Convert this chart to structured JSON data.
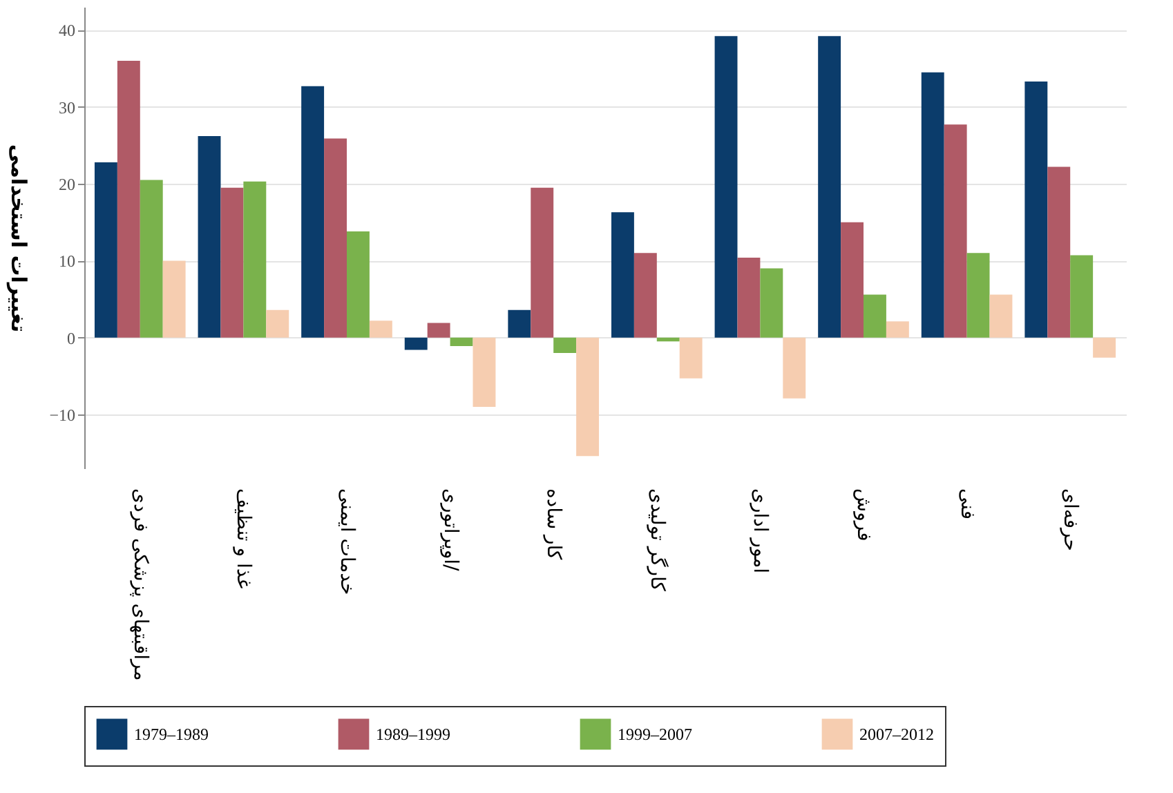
{
  "chart_data": {
    "type": "bar",
    "ylabel": "تغییرات استخدامی",
    "categories": [
      "مراقبتهای پزشکی فردی",
      "غذا و تنظیف",
      "خدمات ایمنی",
      "اوپراتوری/",
      "کار ساده",
      "کارگر تولیدی",
      "امور اداری",
      "فروش",
      "فنی",
      "حرفه‌ای"
    ],
    "series": [
      {
        "name": "1979–1989",
        "color": "#0b3c6b",
        "values": [
          22.8,
          26.2,
          32.7,
          -1.6,
          3.6,
          16.3,
          39.2,
          39.2,
          34.5,
          33.3
        ]
      },
      {
        "name": "1989–1999",
        "color": "#b05a66",
        "values": [
          36,
          19.5,
          25.9,
          1.9,
          19.5,
          11,
          10.4,
          15,
          27.7,
          22.2
        ]
      },
      {
        "name": "1999–2007",
        "color": "#7ab24c",
        "values": [
          20.5,
          20.3,
          13.8,
          -1.1,
          -2,
          -0.5,
          9,
          5.6,
          11,
          10.7
        ]
      },
      {
        "name": "2007–2012",
        "color": "#f6cdb0",
        "values": [
          10,
          3.6,
          2.2,
          -9,
          -15.4,
          -5.3,
          -7.9,
          2.1,
          5.6,
          -2.6
        ]
      }
    ],
    "ylim": [
      -17,
      43
    ],
    "yticks": [
      -10,
      0,
      10,
      20,
      30,
      40
    ],
    "grid": "y",
    "legend": "bottom"
  }
}
